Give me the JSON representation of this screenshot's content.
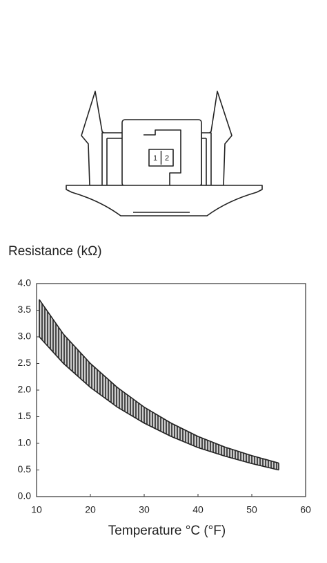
{
  "connector": {
    "pins": [
      "1",
      "2"
    ]
  },
  "chart_data": {
    "type": "band",
    "y_label": "Resistance (kΩ)",
    "x_label": "Temperature °C (°F)",
    "x": [
      10.5,
      15,
      20,
      25,
      30,
      35,
      40,
      45,
      50,
      55
    ],
    "series": [
      {
        "color": "#222222",
        "values": [
          3.7,
          3.05,
          2.5,
          2.05,
          1.68,
          1.38,
          1.13,
          0.93,
          0.77,
          0.63
        ]
      },
      {
        "color": "#222222",
        "values": [
          3.0,
          2.5,
          2.05,
          1.68,
          1.38,
          1.13,
          0.92,
          0.76,
          0.62,
          0.5
        ]
      }
    ],
    "xlim": [
      10,
      60
    ],
    "xticks": [
      10,
      20,
      30,
      40,
      50,
      60
    ],
    "ylim": [
      0,
      4
    ],
    "yticks": [
      {
        "value": 0,
        "label": "0.0"
      },
      0.5,
      {
        "value": 1,
        "label": "1.0"
      },
      1.5,
      {
        "value": 2,
        "label": "2.0"
      },
      2.5,
      {
        "value": 3,
        "label": "3.0"
      },
      3.5,
      {
        "value": 4,
        "label": "4.0"
      }
    ]
  }
}
